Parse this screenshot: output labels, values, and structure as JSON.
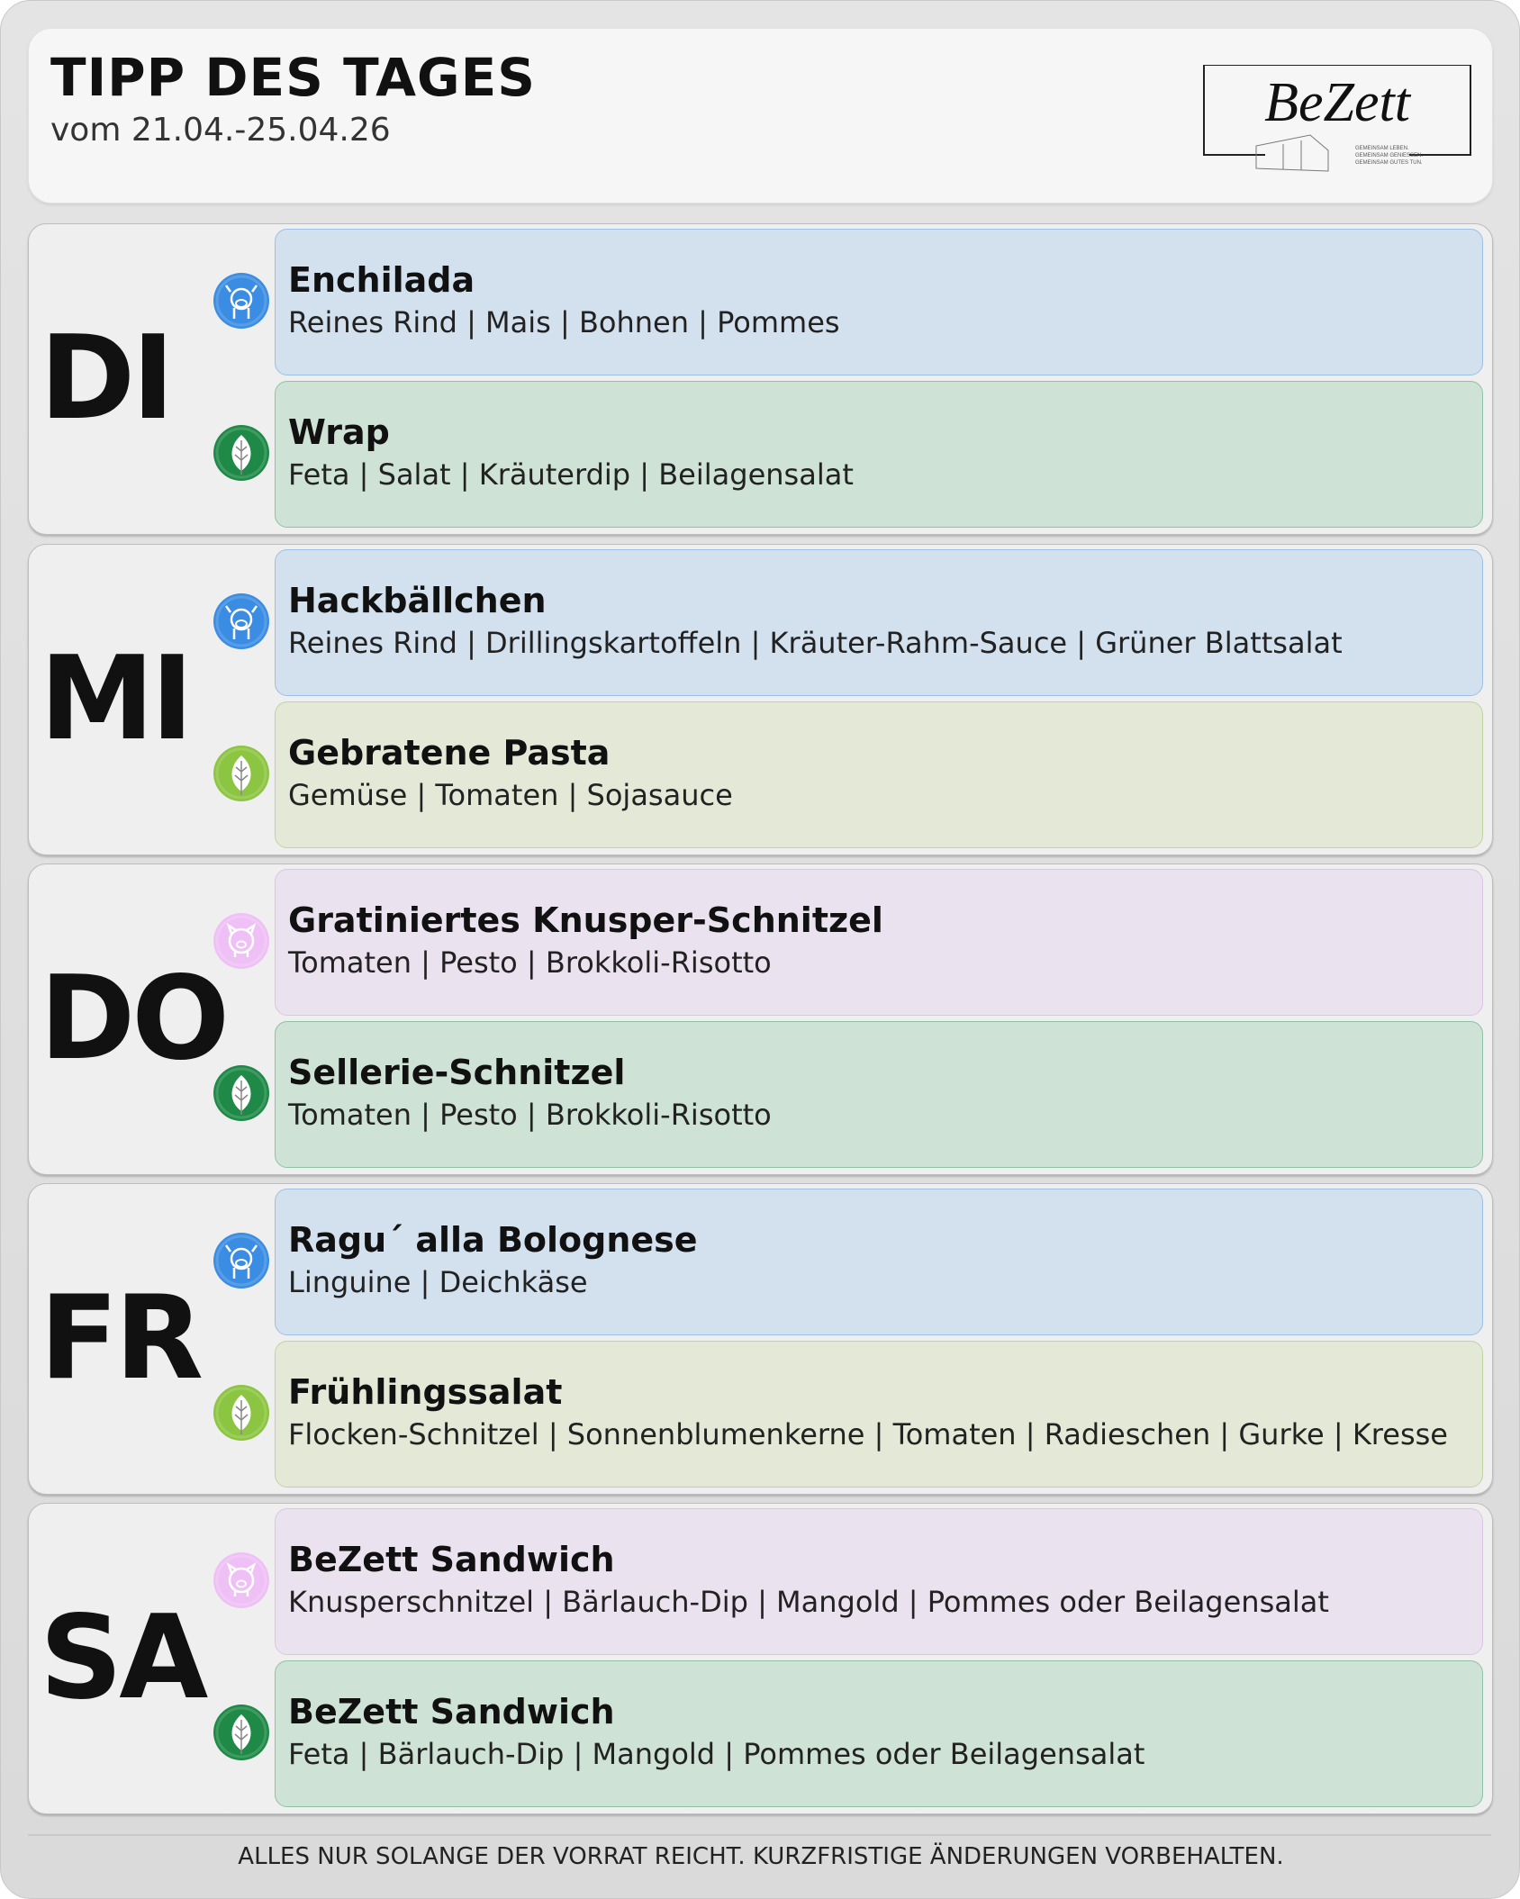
{
  "header": {
    "title": "TIPP DES TAGES",
    "subtitle": "vom 21.04.-25.04.26",
    "logo_text": "BeZett",
    "logo_tagline": [
      "GEMEINSAM LEBEN.",
      "GEMEINSAM GENIESSEN.",
      "GEMEINSAM GUTES TUN."
    ]
  },
  "category_colors": {
    "beef": {
      "icon": "cow-icon",
      "circle": "#3b8de3",
      "card": "#d3e1ef",
      "border": "#9cc0e4"
    },
    "vegan": {
      "icon": "leaf-icon",
      "circle": "#1f8a47",
      "card": "#cee2d6",
      "border": "#8fc2a3"
    },
    "vegetarian": {
      "icon": "leaf-icon",
      "circle": "#8cc541",
      "card": "#e3e9d6",
      "border": "#bcd59e"
    },
    "pork": {
      "icon": "pig-icon",
      "circle": "#efc0f5",
      "card": "#ebe2ef",
      "border": "#dcc4e6"
    }
  },
  "days": [
    {
      "label": "DI",
      "dishes": [
        {
          "category": "beef",
          "name": "Enchilada",
          "description": "Reines Rind | Mais | Bohnen | Pommes"
        },
        {
          "category": "vegan",
          "name": "Wrap",
          "description": "Feta | Salat | Kräuterdip | Beilagensalat"
        }
      ]
    },
    {
      "label": "MI",
      "dishes": [
        {
          "category": "beef",
          "name": "Hackbällchen",
          "description": "Reines Rind | Drillingskartoffeln | Kräuter-Rahm-Sauce | Grüner Blattsalat"
        },
        {
          "category": "vegetarian",
          "name": "Gebratene Pasta",
          "description": "Gemüse | Tomaten | Sojasauce"
        }
      ]
    },
    {
      "label": "DO",
      "dishes": [
        {
          "category": "pork",
          "name": "Gratiniertes Knusper-Schnitzel",
          "description": "Tomaten | Pesto | Brokkoli-Risotto"
        },
        {
          "category": "vegan",
          "name": "Sellerie-Schnitzel",
          "description": "Tomaten | Pesto | Brokkoli-Risotto"
        }
      ]
    },
    {
      "label": "FR",
      "dishes": [
        {
          "category": "beef",
          "name": "Ragu´ alla Bolognese",
          "description": "Linguine | Deichkäse"
        },
        {
          "category": "vegetarian",
          "name": "Frühlingssalat",
          "description": "Flocken-Schnitzel | Sonnenblumenkerne | Tomaten | Radieschen | Gurke | Kresse"
        }
      ]
    },
    {
      "label": "SA",
      "dishes": [
        {
          "category": "pork",
          "name": "BeZett Sandwich",
          "description": "Knusperschnitzel | Bärlauch-Dip | Mangold | Pommes oder Beilagensalat"
        },
        {
          "category": "vegan",
          "name": "BeZett Sandwich",
          "description": "Feta | Bärlauch-Dip | Mangold | Pommes oder Beilagensalat"
        }
      ]
    }
  ],
  "footer": {
    "note": "ALLES NUR SOLANGE DER VORRAT REICHT. KURZFRISTIGE ÄNDERUNGEN VORBEHALTEN."
  }
}
